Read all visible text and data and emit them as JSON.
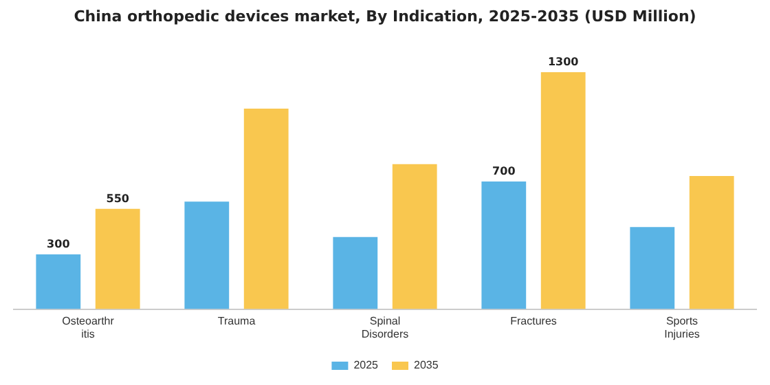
{
  "chart_data": {
    "type": "bar",
    "title": "China orthopedic devices market, By Indication, 2025-2035 (USD Million)",
    "categories": [
      "Osteoarthritis",
      "Trauma",
      "Spinal Disorders",
      "Fractures",
      "Sports Injuries"
    ],
    "series": [
      {
        "name": "2025",
        "color": "#5ab4e5",
        "values": [
          300,
          590,
          395,
          700,
          450
        ],
        "value_labels": [
          "300",
          null,
          null,
          "700",
          null
        ]
      },
      {
        "name": "2035",
        "color": "#f9c74f",
        "values": [
          550,
          1100,
          795,
          1300,
          730
        ],
        "value_labels": [
          "550",
          null,
          null,
          "1300",
          null
        ]
      }
    ],
    "legend": "bottom",
    "grid": false
  }
}
